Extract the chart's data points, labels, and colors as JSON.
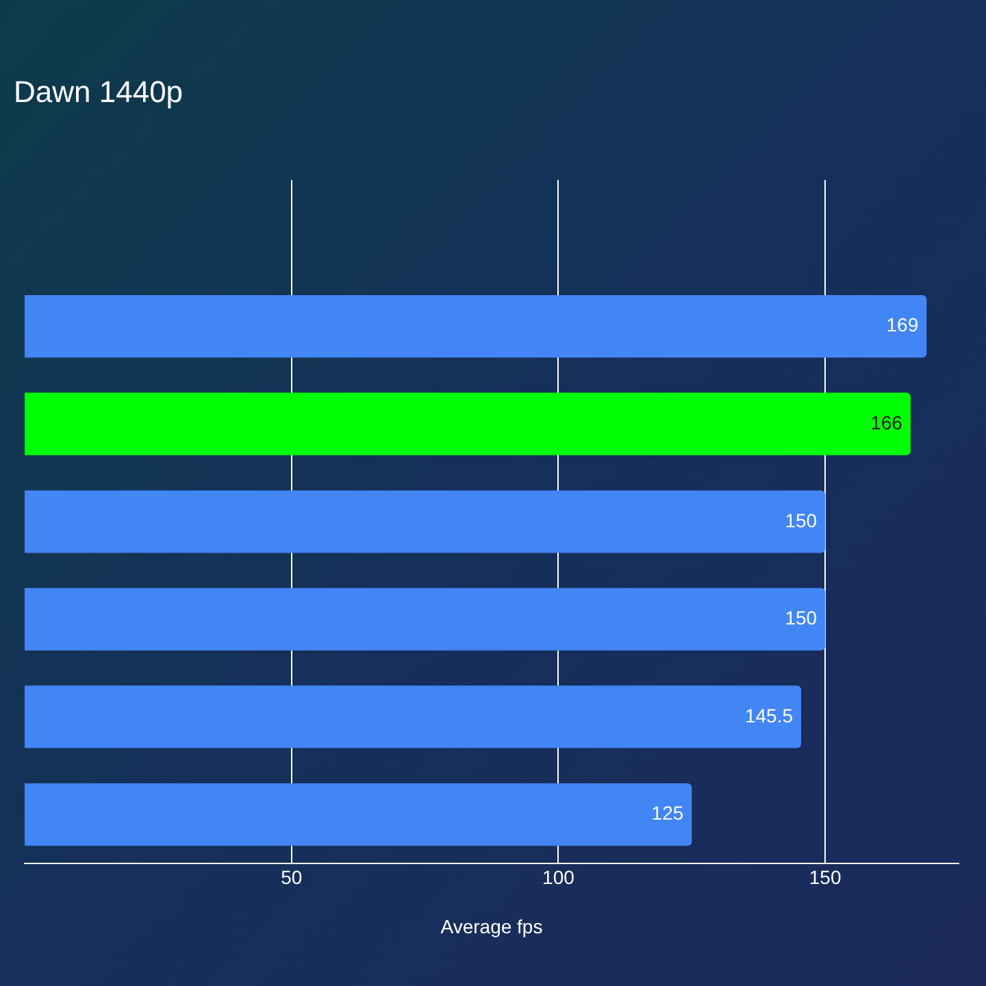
{
  "chart_data": {
    "type": "bar",
    "orientation": "horizontal",
    "title": "Dawn 1440p",
    "xlabel": "Average fps",
    "categories": [
      null,
      null,
      null,
      null,
      null,
      null,
      null
    ],
    "values": [
      null,
      169,
      166,
      150,
      150,
      145.5,
      125
    ],
    "colors": [
      "#4285f4",
      "#4285f4",
      "#00ff00",
      "#4285f4",
      "#4285f4",
      "#4285f4",
      "#4285f4"
    ],
    "xlim": [
      0,
      175
    ],
    "xticks": [
      50,
      100,
      150
    ],
    "grid": "x",
    "tick_labels": "x",
    "data_labels": true,
    "legend": false
  }
}
